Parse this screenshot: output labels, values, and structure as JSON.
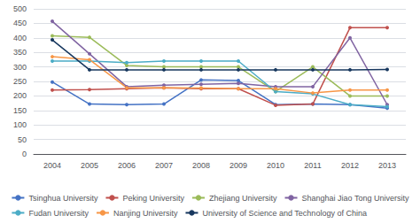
{
  "chart_data": {
    "type": "line",
    "categories": [
      "2004",
      "2005",
      "2006",
      "2007",
      "2008",
      "2009",
      "2010",
      "2011",
      "2012",
      "2013"
    ],
    "series": [
      {
        "name": "Tsinghua University",
        "color": "#4472C4",
        "values": [
          248,
          172,
          170,
          172,
          255,
          253,
          170,
          172,
          170,
          158
        ]
      },
      {
        "name": "Peking University",
        "color": "#C0504D",
        "values": [
          220,
          222,
          225,
          228,
          225,
          225,
          168,
          172,
          435,
          435
        ]
      },
      {
        "name": "Zhejiang University",
        "color": "#9BBB59",
        "values": [
          407,
          402,
          305,
          300,
          300,
          300,
          215,
          300,
          200,
          200
        ]
      },
      {
        "name": "Shanghai Jiao Tong University",
        "color": "#8064A2",
        "values": [
          457,
          345,
          232,
          237,
          240,
          243,
          232,
          232,
          400,
          170
        ]
      },
      {
        "name": "Fudan University",
        "color": "#4BACC6",
        "values": [
          320,
          320,
          315,
          320,
          320,
          320,
          215,
          207,
          170,
          163
        ]
      },
      {
        "name": "Nanjing University",
        "color": "#F79646",
        "values": [
          335,
          325,
          228,
          228,
          227,
          225,
          225,
          210,
          220,
          220
        ]
      },
      {
        "name": "University of Science and Technology of China",
        "color": "#17375E",
        "values": [
          393,
          290,
          290,
          290,
          290,
          290,
          290,
          290,
          290,
          291
        ]
      }
    ],
    "ylim": [
      0,
      500
    ],
    "yticks": [
      0,
      50,
      100,
      150,
      200,
      250,
      300,
      350,
      400,
      450,
      500
    ],
    "grid": true,
    "legend": "bottom",
    "marker": "circle"
  }
}
